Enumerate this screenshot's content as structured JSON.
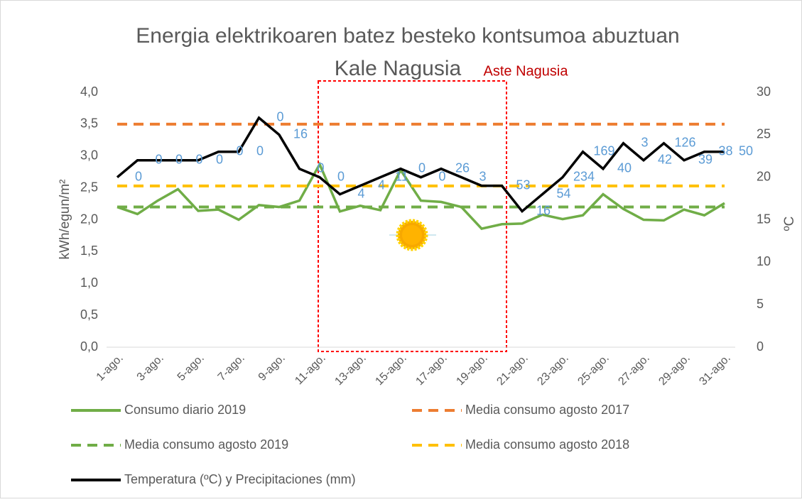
{
  "chart_data": {
    "type": "line",
    "title": "Energia elektrikoaren batez besteko kontsumoa abuztuan",
    "subtitle": "Kale Nagusia",
    "annotation": "Aste Nagusia",
    "ylabel": "kWh/egun/m²",
    "y2label": "ºC",
    "categories": [
      "1-ago.",
      null,
      "3-ago.",
      null,
      "5-ago.",
      null,
      "7-ago.",
      null,
      "9-ago.",
      null,
      "11-ago.",
      null,
      "13-ago.",
      null,
      "15-ago.",
      null,
      "17-ago.",
      null,
      "19-ago.",
      null,
      "21-ago.",
      null,
      "23-ago.",
      null,
      "25-ago.",
      null,
      "27-ago.",
      null,
      "29-ago.",
      null,
      "31-ago."
    ],
    "ylim": [
      0,
      4
    ],
    "yticks": [
      {
        "value": 0,
        "label": "0,0"
      },
      {
        "value": 0.5,
        "label": "0,5"
      },
      {
        "value": 1,
        "label": "1,0"
      },
      {
        "value": 1.5,
        "label": "1,5"
      },
      {
        "value": 2,
        "label": "2,0"
      },
      {
        "value": 2.5,
        "label": "2,5"
      },
      {
        "value": 3,
        "label": "3,0"
      },
      {
        "value": 3.5,
        "label": "3,5"
      },
      {
        "value": 4,
        "label": "4,0"
      }
    ],
    "y2lim": [
      0,
      30
    ],
    "y2ticks": [
      0,
      5,
      10,
      15,
      20,
      25,
      30
    ],
    "series": [
      {
        "name": "Consumo diario 2019",
        "color": "#70ad47",
        "dash": false,
        "values": [
          2.2,
          2.09,
          2.3,
          2.48,
          2.14,
          2.16,
          2.0,
          2.23,
          2.2,
          2.3,
          2.87,
          2.13,
          2.22,
          2.15,
          2.78,
          2.3,
          2.28,
          2.2,
          1.86,
          1.93,
          1.94,
          2.08,
          2.01,
          2.07,
          2.4,
          2.17,
          2.0,
          1.99,
          2.16,
          2.07,
          2.26
        ]
      },
      {
        "name": "Media consumo agosto 2017",
        "color": "#ed7d31",
        "dash": true,
        "values": [
          3.5,
          3.5,
          3.5,
          3.5,
          3.5,
          3.5,
          3.5,
          3.5,
          3.5,
          3.5,
          3.5,
          3.5,
          3.5,
          3.5,
          3.5,
          3.5,
          3.5,
          3.5,
          3.5,
          3.5,
          3.5,
          3.5,
          3.5,
          3.5,
          3.5,
          3.5,
          3.5,
          3.5,
          3.5,
          3.5,
          3.5
        ]
      },
      {
        "name": "Media consumo agosto 2019",
        "color": "#70ad47",
        "dash": true,
        "values": [
          2.2,
          2.2,
          2.2,
          2.2,
          2.2,
          2.2,
          2.2,
          2.2,
          2.2,
          2.2,
          2.2,
          2.2,
          2.2,
          2.2,
          2.2,
          2.2,
          2.2,
          2.2,
          2.2,
          2.2,
          2.2,
          2.2,
          2.2,
          2.2,
          2.2,
          2.2,
          2.2,
          2.2,
          2.2,
          2.2,
          2.2
        ]
      },
      {
        "name": "Media consumo agosto 2018",
        "color": "#ffc000",
        "dash": true,
        "values": [
          2.53,
          2.53,
          2.53,
          2.53,
          2.53,
          2.53,
          2.53,
          2.53,
          2.53,
          2.53,
          2.53,
          2.53,
          2.53,
          2.53,
          2.53,
          2.53,
          2.53,
          2.53,
          2.53,
          2.53,
          2.53,
          2.53,
          2.53,
          2.53,
          2.53,
          2.53,
          2.53,
          2.53,
          2.53,
          2.53,
          2.53
        ]
      },
      {
        "name": "Temperatura (ºC) y Precipitaciones (mm)",
        "color": "#000000",
        "dash": false,
        "axis": "y2",
        "values": [
          20,
          22,
          22,
          22,
          22,
          23,
          23,
          27,
          25,
          21,
          20,
          18,
          19,
          20,
          21,
          20,
          21,
          20,
          19,
          19,
          16,
          18,
          20,
          23,
          21,
          24,
          22,
          24,
          22,
          23,
          23
        ],
        "precipitation": [
          0,
          0,
          0,
          0,
          0,
          0,
          0,
          0,
          16,
          0,
          0,
          4,
          4,
          11,
          0,
          0,
          26,
          3,
          null,
          53,
          16,
          54,
          234,
          169,
          40,
          3,
          42,
          126,
          39,
          38,
          50
        ]
      }
    ]
  }
}
